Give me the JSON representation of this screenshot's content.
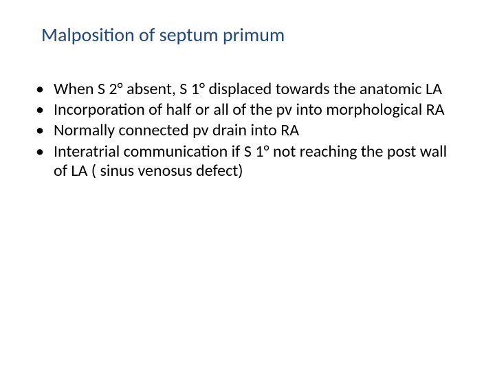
{
  "slide": {
    "title": "Malposition of septum primum",
    "title_color": "#1f497d",
    "title_fontsize": 28,
    "body_fontsize": 24,
    "body_color": "#000000",
    "background_color": "#ffffff",
    "bullets": [
      "When S 2° absent, S 1° displaced towards the anatomic LA",
      "Incorporation of half or all of the pv into morphological RA",
      "Normally connected pv drain into RA",
      "Interatrial communication if S 1° not reaching the post wall of LA  ( sinus venosus defect)"
    ]
  }
}
